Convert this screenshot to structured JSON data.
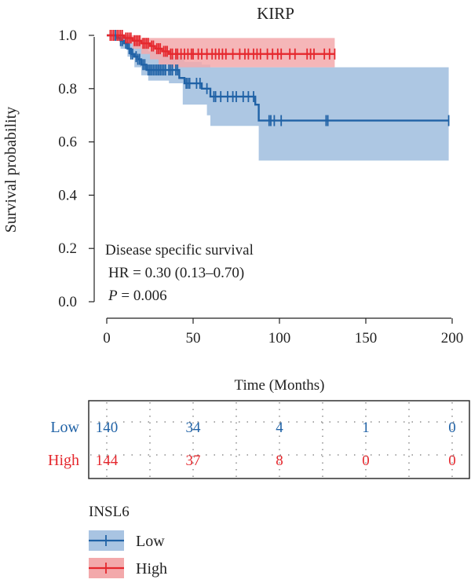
{
  "chart_data": {
    "type": "line",
    "subtype": "kaplan-meier",
    "title": "KIRP",
    "xlabel": "Time (Months)",
    "ylabel": "Survival probability",
    "xlim": [
      -7,
      202
    ],
    "ylim": [
      -0.04,
      1.04
    ],
    "xticks": [
      0,
      50,
      100,
      150,
      200
    ],
    "yticks": [
      0.0,
      0.2,
      0.4,
      0.6,
      0.8,
      1.0
    ],
    "xtick_labels": [
      "0",
      "50",
      "100",
      "150",
      "200"
    ],
    "ytick_labels": [
      "0.0",
      "0.2",
      "0.4",
      "0.6",
      "0.8",
      "1.0"
    ],
    "grid": false,
    "annotation": {
      "line1": "Disease specific survival",
      "line2": "HR = 0.30 (0.13–0.70)",
      "p_label": "P",
      "p_value": " = 0.006"
    },
    "colors": {
      "low": "#2062a6",
      "high": "#e5282e",
      "low_band": "#a9c4e2",
      "high_band": "#f3a9ab"
    },
    "series": [
      {
        "name": "Low",
        "steps": [
          [
            0,
            1.0
          ],
          [
            3,
            1.0
          ],
          [
            6,
            0.99
          ],
          [
            8,
            0.98
          ],
          [
            10,
            0.97
          ],
          [
            12,
            0.95
          ],
          [
            14,
            0.93
          ],
          [
            16,
            0.92
          ],
          [
            18,
            0.91
          ],
          [
            20,
            0.89
          ],
          [
            23,
            0.87
          ],
          [
            42,
            0.84
          ],
          [
            45,
            0.82
          ],
          [
            55,
            0.8
          ],
          [
            60,
            0.77
          ],
          [
            86,
            0.74
          ],
          [
            88,
            0.68
          ],
          [
            198,
            0.68
          ]
        ],
        "upper": [
          [
            0,
            1.0
          ],
          [
            6,
            1.0
          ],
          [
            12,
            0.99
          ],
          [
            16,
            0.97
          ],
          [
            20,
            0.96
          ],
          [
            24,
            0.94
          ],
          [
            30,
            0.93
          ],
          [
            36,
            0.92
          ],
          [
            45,
            0.9
          ],
          [
            55,
            0.89
          ],
          [
            60,
            0.88
          ],
          [
            198,
            0.88
          ]
        ],
        "lower": [
          [
            0,
            1.0
          ],
          [
            4,
            0.98
          ],
          [
            8,
            0.95
          ],
          [
            12,
            0.92
          ],
          [
            16,
            0.88
          ],
          [
            20,
            0.85
          ],
          [
            24,
            0.83
          ],
          [
            36,
            0.82
          ],
          [
            44,
            0.74
          ],
          [
            58,
            0.7
          ],
          [
            60,
            0.66
          ],
          [
            86,
            0.66
          ],
          [
            88,
            0.53
          ],
          [
            198,
            0.53
          ]
        ],
        "censor": [
          5,
          8,
          9,
          11,
          13,
          14,
          15,
          17,
          18,
          19,
          21,
          22,
          24,
          25,
          26,
          27,
          28,
          29,
          30,
          31,
          32,
          33,
          34,
          36,
          37,
          38,
          40,
          41,
          46,
          47,
          48,
          52,
          54,
          58,
          62,
          63,
          66,
          70,
          73,
          75,
          79,
          82,
          85,
          94,
          95,
          97,
          101,
          127,
          128,
          198
        ]
      },
      {
        "name": "High",
        "steps": [
          [
            0,
            1.0
          ],
          [
            5,
            1.0
          ],
          [
            10,
            0.99
          ],
          [
            15,
            0.98
          ],
          [
            20,
            0.97
          ],
          [
            25,
            0.96
          ],
          [
            28,
            0.95
          ],
          [
            32,
            0.94
          ],
          [
            36,
            0.93
          ],
          [
            132,
            0.93
          ]
        ],
        "upper": [
          [
            0,
            1.0
          ],
          [
            10,
            1.0
          ],
          [
            20,
            0.99
          ],
          [
            132,
            0.99
          ]
        ],
        "lower": [
          [
            0,
            1.0
          ],
          [
            5,
            0.99
          ],
          [
            10,
            0.97
          ],
          [
            15,
            0.95
          ],
          [
            20,
            0.93
          ],
          [
            25,
            0.91
          ],
          [
            30,
            0.89
          ],
          [
            36,
            0.88
          ],
          [
            60,
            0.88
          ],
          [
            132,
            0.88
          ]
        ],
        "censor": [
          2,
          3,
          4,
          6,
          7,
          8,
          9,
          11,
          12,
          13,
          14,
          16,
          17,
          18,
          19,
          21,
          22,
          23,
          24,
          26,
          27,
          29,
          30,
          31,
          33,
          34,
          35,
          37,
          38,
          40,
          41,
          43,
          45,
          47,
          49,
          50,
          53,
          55,
          58,
          61,
          63,
          65,
          67,
          69,
          73,
          77,
          80,
          82,
          85,
          87,
          89,
          93,
          96,
          99,
          101,
          106,
          109,
          116,
          118,
          120,
          126,
          129,
          132
        ]
      }
    ],
    "risk_table": {
      "timepoints": [
        0,
        50,
        100,
        150,
        200
      ],
      "rows": [
        {
          "label": "Low",
          "values": [
            "140",
            "34",
            "4",
            "1",
            "0"
          ]
        },
        {
          "label": "High",
          "values": [
            "144",
            "37",
            "8",
            "0",
            "0"
          ]
        }
      ]
    },
    "legend": {
      "title": "INSL6",
      "position": "bottom-left",
      "items": [
        {
          "label": "Low"
        },
        {
          "label": "High"
        }
      ]
    }
  }
}
